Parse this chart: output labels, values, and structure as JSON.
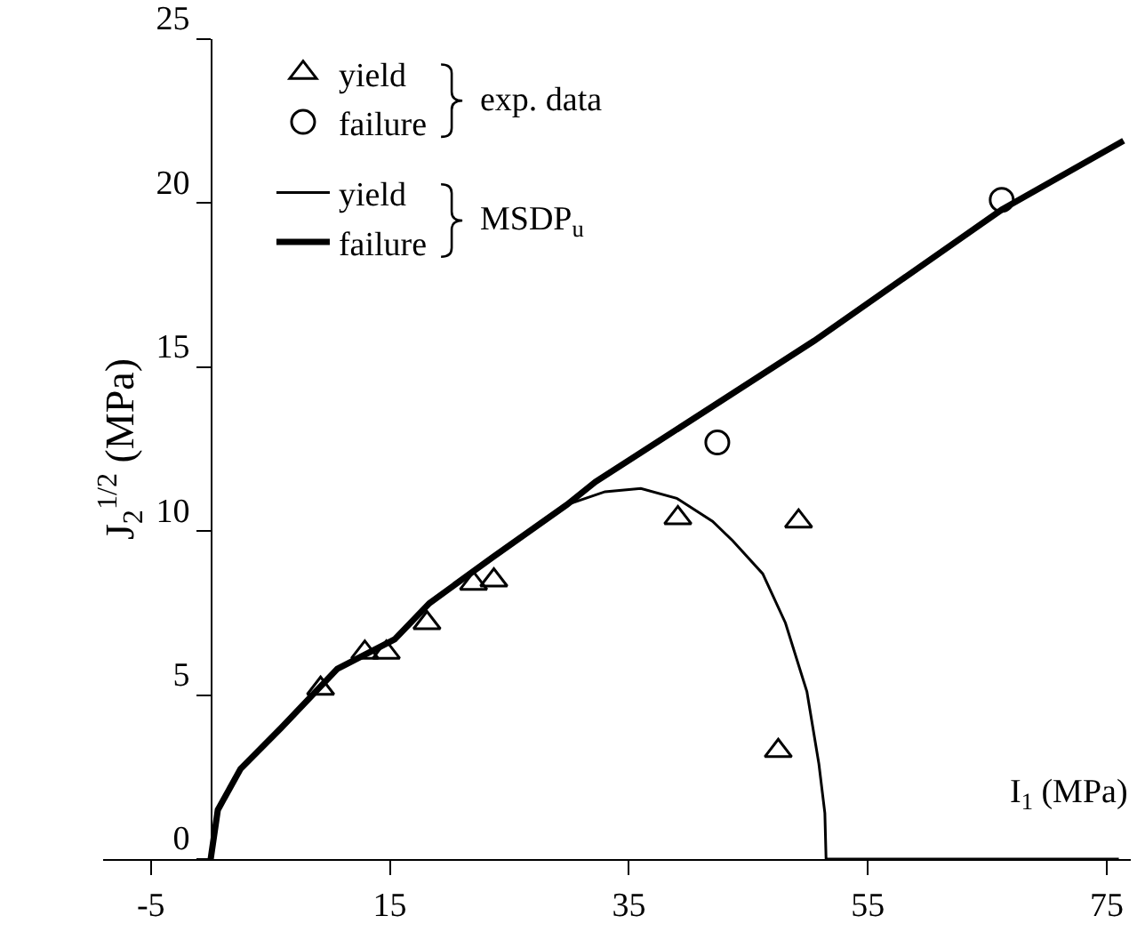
{
  "chart_data": {
    "type": "line",
    "xlabel": "I$_{1}$ (MPa)",
    "ylabel": "J$_{2}$$^{1/2}$ (MPa)",
    "xlim": [
      -9,
      77
    ],
    "xticks": [
      -5,
      15,
      35,
      55,
      75
    ],
    "ylim": [
      0,
      25
    ],
    "yticks": [
      0,
      5,
      10,
      15,
      20,
      25
    ],
    "grid": false,
    "legend": "top left",
    "annotations": [
      "exp. data",
      "MSDP$_{u}$"
    ],
    "series": [
      {
        "name": "yield",
        "type": "scatter",
        "marker": "triangle",
        "color": "#000000",
        "x": [
          9.2,
          12.9,
          14.7,
          18.1,
          22.0,
          23.7,
          39.1,
          49.2,
          47.5
        ],
        "values": [
          5.2,
          6.3,
          6.3,
          7.2,
          8.4,
          8.5,
          10.4,
          10.3,
          3.3
        ]
      },
      {
        "name": "failure",
        "type": "scatter",
        "marker": "circle",
        "color": "#000000",
        "x": [
          42.4,
          66.2
        ],
        "values": [
          12.7,
          20.1
        ]
      },
      {
        "name": "yield",
        "color": "#000000",
        "x": [
          0,
          0.6,
          2.5,
          5.9,
          10.6,
          15.4,
          18.3,
          23.6,
          29.8,
          33,
          36,
          39,
          42,
          43.7,
          46.2,
          48.1,
          49.9,
          50.9,
          51.4,
          51.5,
          76
        ],
        "values": [
          0,
          1.5,
          2.75,
          4.0,
          5.8,
          6.7,
          7.8,
          9.2,
          10.8,
          11.2,
          11.3,
          11.0,
          10.3,
          9.7,
          8.7,
          7.2,
          5.1,
          2.9,
          1.4,
          0,
          0
        ]
      },
      {
        "name": "failure",
        "color": "#000000",
        "x": [
          0,
          0.6,
          2.5,
          5.9,
          10.6,
          15.4,
          18.3,
          23.6,
          29.8,
          32.2,
          43.7,
          50.5,
          66.2,
          76.4
        ],
        "values": [
          0,
          1.5,
          2.75,
          4.0,
          5.8,
          6.7,
          7.8,
          9.2,
          10.8,
          11.5,
          14.2,
          15.8,
          19.8,
          21.9
        ]
      }
    ]
  }
}
